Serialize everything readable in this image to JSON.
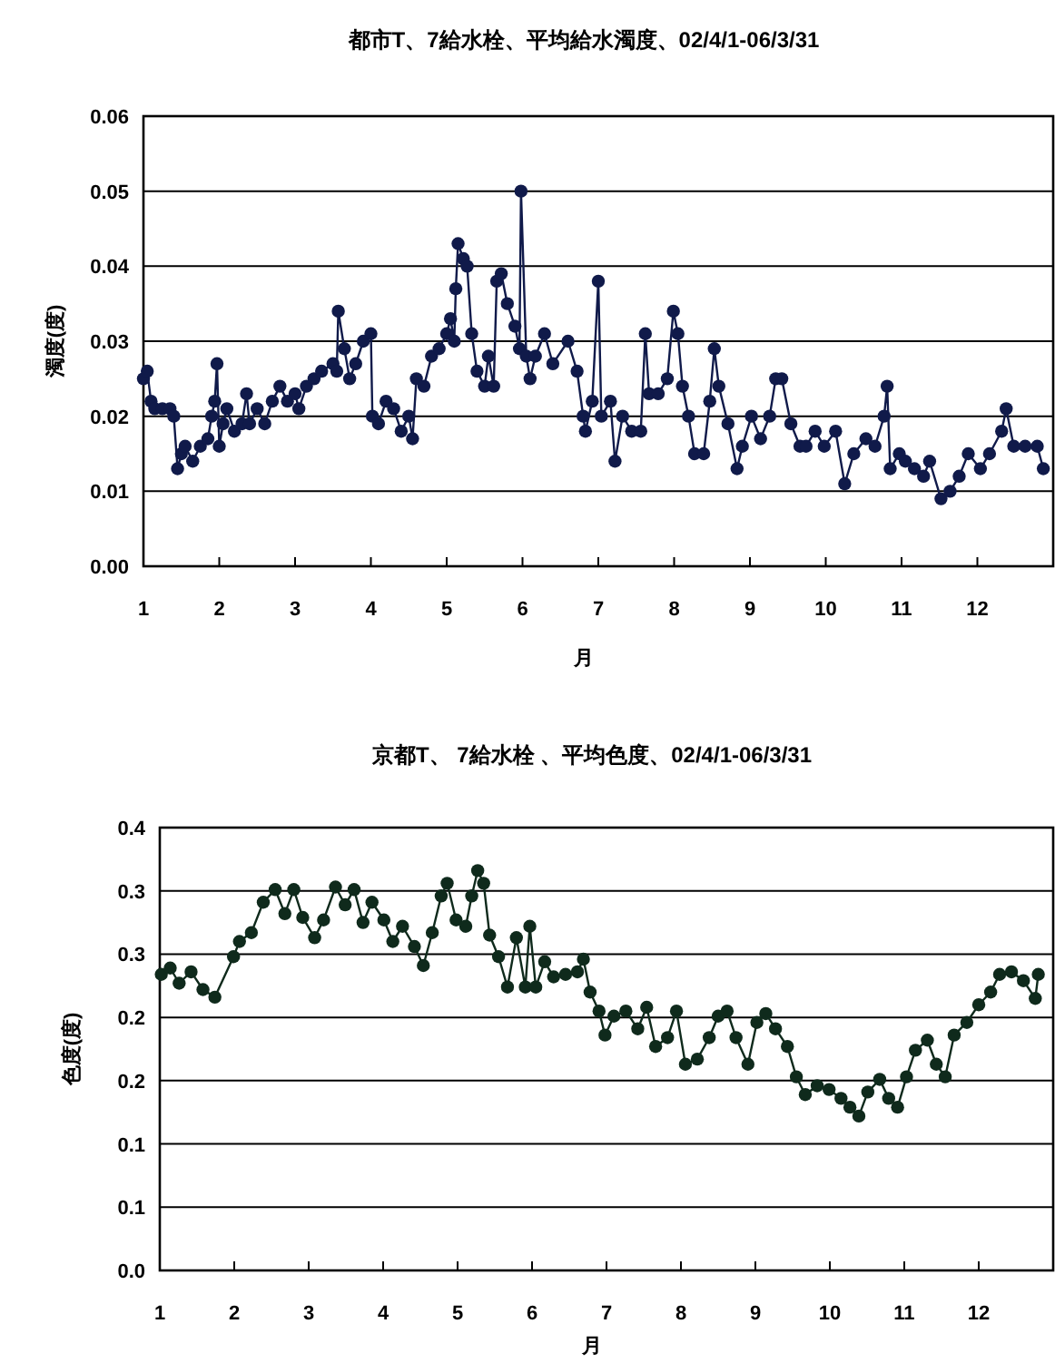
{
  "chart_data": [
    {
      "type": "line",
      "title": "都市T、7給水栓、平均給水濁度、02/4/1-06/3/31",
      "xlabel": "月",
      "ylabel": "濁度(度)",
      "marker": "circle",
      "line_style": "solid",
      "grid": "y",
      "xlim": [
        1,
        13
      ],
      "ylim": [
        0,
        0.06
      ],
      "xticks": [
        1,
        2,
        3,
        4,
        5,
        6,
        7,
        8,
        9,
        10,
        11,
        12
      ],
      "yticks": [
        {
          "value": 0,
          "label": "0.00"
        },
        {
          "value": 0.01,
          "label": "0.01"
        },
        {
          "value": 0.02,
          "label": "0.02"
        },
        {
          "value": 0.03,
          "label": "0.03"
        },
        {
          "value": 0.04,
          "label": "0.04"
        },
        {
          "value": 0.05,
          "label": "0.05"
        },
        {
          "value": 0.06,
          "label": "0.06"
        }
      ],
      "series": [
        {
          "color": "#101a4a",
          "x": [
            1.0,
            1.05,
            1.1,
            1.15,
            1.25,
            1.35,
            1.4,
            1.45,
            1.5,
            1.55,
            1.65,
            1.75,
            1.85,
            1.9,
            1.94,
            1.97,
            2.0,
            2.05,
            2.1,
            2.2,
            2.3,
            2.36,
            2.4,
            2.5,
            2.6,
            2.7,
            2.8,
            2.9,
            3.0,
            3.05,
            3.15,
            3.25,
            3.35,
            3.5,
            3.55,
            3.57,
            3.65,
            3.72,
            3.8,
            3.9,
            4.0,
            4.02,
            4.1,
            4.2,
            4.3,
            4.4,
            4.5,
            4.55,
            4.6,
            4.7,
            4.8,
            4.9,
            5.0,
            5.05,
            5.1,
            5.12,
            5.15,
            5.22,
            5.27,
            5.33,
            5.4,
            5.5,
            5.55,
            5.62,
            5.66,
            5.72,
            5.8,
            5.9,
            5.96,
            5.98,
            6.05,
            6.1,
            6.17,
            6.29,
            6.4,
            6.6,
            6.72,
            6.8,
            6.83,
            6.92,
            7.0,
            7.04,
            7.16,
            7.22,
            7.32,
            7.44,
            7.56,
            7.62,
            7.67,
            7.79,
            7.91,
            7.99,
            8.05,
            8.11,
            8.19,
            8.27,
            8.39,
            8.47,
            8.53,
            8.59,
            8.71,
            8.83,
            8.9,
            9.02,
            9.14,
            9.26,
            9.34,
            9.42,
            9.54,
            9.66,
            9.74,
            9.86,
            9.98,
            10.13,
            10.25,
            10.37,
            10.53,
            10.65,
            10.77,
            10.81,
            10.85,
            10.97,
            11.05,
            11.17,
            11.29,
            11.37,
            11.52,
            11.64,
            11.76,
            11.88,
            12.04,
            12.16,
            12.32,
            12.38,
            12.48,
            12.63,
            12.79,
            12.87
          ],
          "values": [
            0.025,
            0.026,
            0.022,
            0.021,
            0.021,
            0.021,
            0.02,
            0.013,
            0.015,
            0.016,
            0.014,
            0.016,
            0.017,
            0.02,
            0.022,
            0.027,
            0.016,
            0.019,
            0.021,
            0.018,
            0.019,
            0.023,
            0.019,
            0.021,
            0.019,
            0.022,
            0.024,
            0.022,
            0.023,
            0.021,
            0.024,
            0.025,
            0.026,
            0.027,
            0.026,
            0.034,
            0.029,
            0.025,
            0.027,
            0.03,
            0.031,
            0.02,
            0.019,
            0.022,
            0.021,
            0.018,
            0.02,
            0.017,
            0.025,
            0.024,
            0.028,
            0.029,
            0.031,
            0.033,
            0.03,
            0.037,
            0.043,
            0.041,
            0.04,
            0.031,
            0.026,
            0.024,
            0.028,
            0.024,
            0.038,
            0.039,
            0.035,
            0.032,
            0.029,
            0.05,
            0.028,
            0.025,
            0.028,
            0.031,
            0.027,
            0.03,
            0.026,
            0.02,
            0.018,
            0.022,
            0.038,
            0.02,
            0.022,
            0.014,
            0.02,
            0.018,
            0.018,
            0.031,
            0.023,
            0.023,
            0.025,
            0.034,
            0.031,
            0.024,
            0.02,
            0.015,
            0.015,
            0.022,
            0.029,
            0.024,
            0.019,
            0.013,
            0.016,
            0.02,
            0.017,
            0.02,
            0.025,
            0.025,
            0.019,
            0.016,
            0.016,
            0.018,
            0.016,
            0.018,
            0.011,
            0.015,
            0.017,
            0.016,
            0.02,
            0.024,
            0.013,
            0.015,
            0.014,
            0.013,
            0.012,
            0.014,
            0.009,
            0.01,
            0.012,
            0.015,
            0.013,
            0.015,
            0.018,
            0.021,
            0.016,
            0.016,
            0.016,
            0.013
          ]
        }
      ]
    },
    {
      "type": "line",
      "title": "京都T、 7給水栓 、平均色度、02/4/1-06/3/31",
      "xlabel": "月",
      "ylabel": "色度(度)",
      "marker": "circle",
      "line_style": "solid",
      "grid": "y",
      "xlim": [
        1,
        13
      ],
      "ylim": [
        0,
        0.35
      ],
      "xticks": [
        1,
        2,
        3,
        4,
        5,
        6,
        7,
        8,
        9,
        10,
        11,
        12
      ],
      "yticks": [
        {
          "value": 0,
          "label": "0.0"
        },
        {
          "value": 0.05,
          "label": "0.1"
        },
        {
          "value": 0.1,
          "label": "0.1"
        },
        {
          "value": 0.15,
          "label": "0.2"
        },
        {
          "value": 0.2,
          "label": "0.2"
        },
        {
          "value": 0.25,
          "label": "0.3"
        },
        {
          "value": 0.3,
          "label": "0.3"
        },
        {
          "value": 0.35,
          "label": "0.4"
        }
      ],
      "series": [
        {
          "color": "#0f2a1c",
          "x": [
            1.02,
            1.14,
            1.26,
            1.42,
            1.58,
            1.74,
            1.99,
            2.07,
            2.23,
            2.39,
            2.55,
            2.68,
            2.8,
            2.92,
            3.08,
            3.2,
            3.36,
            3.49,
            3.61,
            3.73,
            3.85,
            4.01,
            4.13,
            4.26,
            4.42,
            4.54,
            4.66,
            4.78,
            4.86,
            4.98,
            5.11,
            5.19,
            5.27,
            5.35,
            5.43,
            5.55,
            5.67,
            5.79,
            5.91,
            5.97,
            6.05,
            6.17,
            6.29,
            6.45,
            6.61,
            6.69,
            6.78,
            6.9,
            6.98,
            7.1,
            7.26,
            7.42,
            7.54,
            7.66,
            7.82,
            7.94,
            8.06,
            8.22,
            8.38,
            8.5,
            8.62,
            8.74,
            8.9,
            9.02,
            9.14,
            9.27,
            9.43,
            9.55,
            9.67,
            9.83,
            9.99,
            10.15,
            10.27,
            10.39,
            10.51,
            10.67,
            10.79,
            10.91,
            11.03,
            11.15,
            11.31,
            11.43,
            11.55,
            11.67,
            11.84,
            12.0,
            12.16,
            12.28,
            12.44,
            12.6,
            12.76,
            12.8
          ],
          "values": [
            0.234,
            0.239,
            0.227,
            0.236,
            0.222,
            0.216,
            0.248,
            0.26,
            0.267,
            0.291,
            0.301,
            0.282,
            0.301,
            0.279,
            0.263,
            0.277,
            0.303,
            0.289,
            0.301,
            0.275,
            0.291,
            0.277,
            0.26,
            0.272,
            0.256,
            0.241,
            0.267,
            0.296,
            0.306,
            0.277,
            0.272,
            0.296,
            0.316,
            0.306,
            0.265,
            0.248,
            0.224,
            0.263,
            0.224,
            0.272,
            0.224,
            0.244,
            0.232,
            0.234,
            0.236,
            0.246,
            0.22,
            0.205,
            0.186,
            0.201,
            0.205,
            0.191,
            0.208,
            0.177,
            0.184,
            0.205,
            0.163,
            0.167,
            0.184,
            0.201,
            0.205,
            0.184,
            0.163,
            0.196,
            0.203,
            0.191,
            0.177,
            0.153,
            0.139,
            0.146,
            0.143,
            0.136,
            0.129,
            0.122,
            0.141,
            0.151,
            0.136,
            0.129,
            0.153,
            0.174,
            0.182,
            0.163,
            0.153,
            0.186,
            0.196,
            0.21,
            0.22,
            0.234,
            0.236,
            0.229,
            0.215,
            0.234
          ]
        }
      ]
    }
  ]
}
